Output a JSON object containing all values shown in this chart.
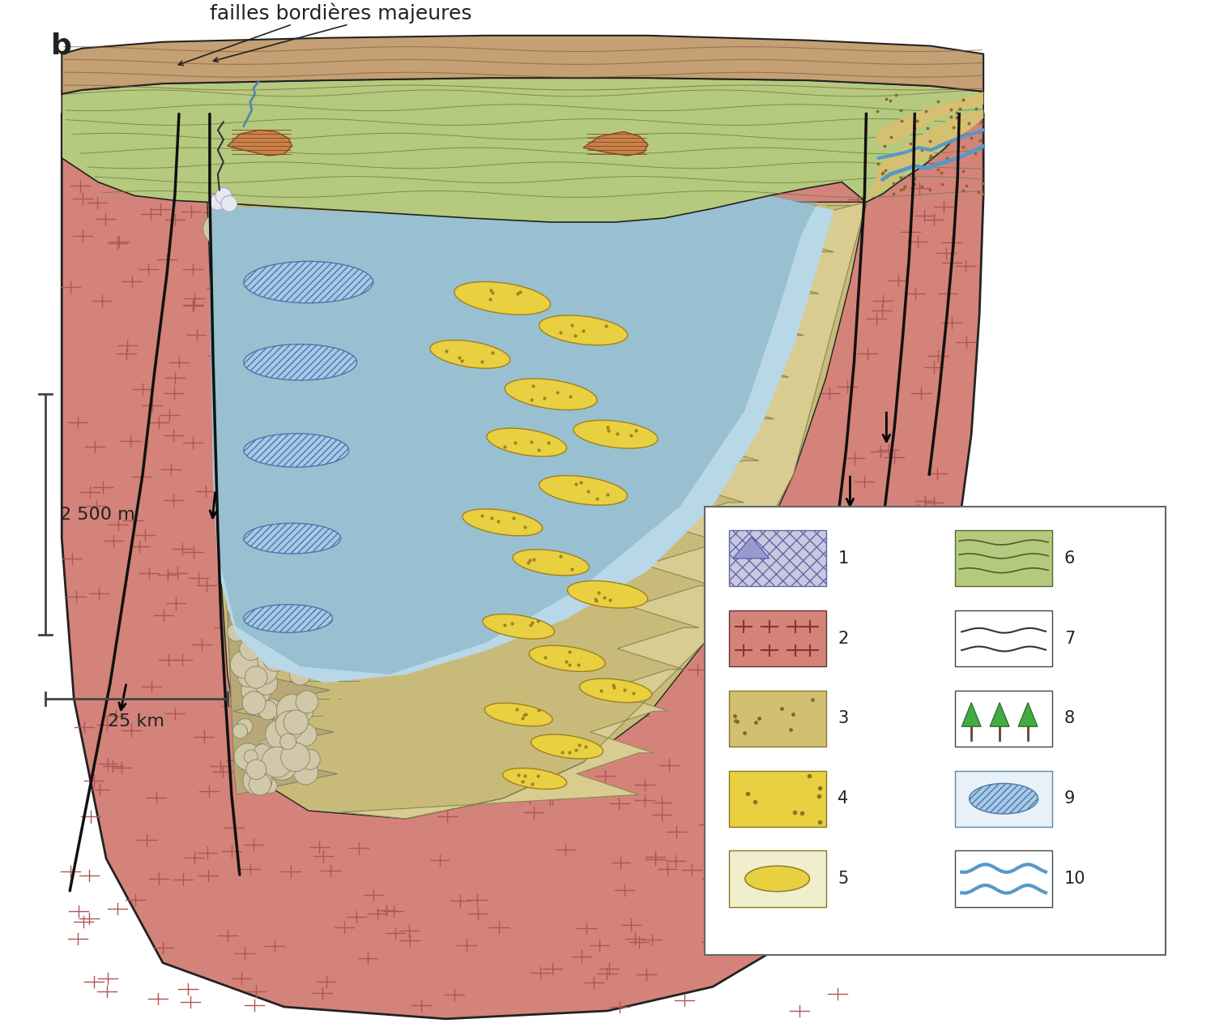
{
  "bg_color": "#ffffff",
  "label_b": "b",
  "label_failles": "failles bordières majeures",
  "scale_v": "2 500 m",
  "scale_h": "25 km",
  "colors": {
    "basement": "#d4837a",
    "basement_mark": "#b05555",
    "green": "#b5ca7e",
    "green_line": "#6b7d45",
    "brown_cap": "#c4a074",
    "brown_line": "#8a6040",
    "lake_light": "#b8d8e8",
    "lake_dark": "#7aaabb",
    "sand": "#c8bb7a",
    "sand_line": "#888855",
    "gravel_bg": "#b8a878",
    "gravel_stone": "#d0c8a8",
    "gravel_outline": "#888060",
    "yellow_lens": "#e8d040",
    "yellow_lens_edge": "#a08020",
    "blue_lens": "#a8c8e8",
    "blue_lens_edge": "#4878a8",
    "right_fan": "#d8cc90",
    "right_fan_edge": "#888855",
    "fault_color": "#111111",
    "outline": "#222222"
  }
}
